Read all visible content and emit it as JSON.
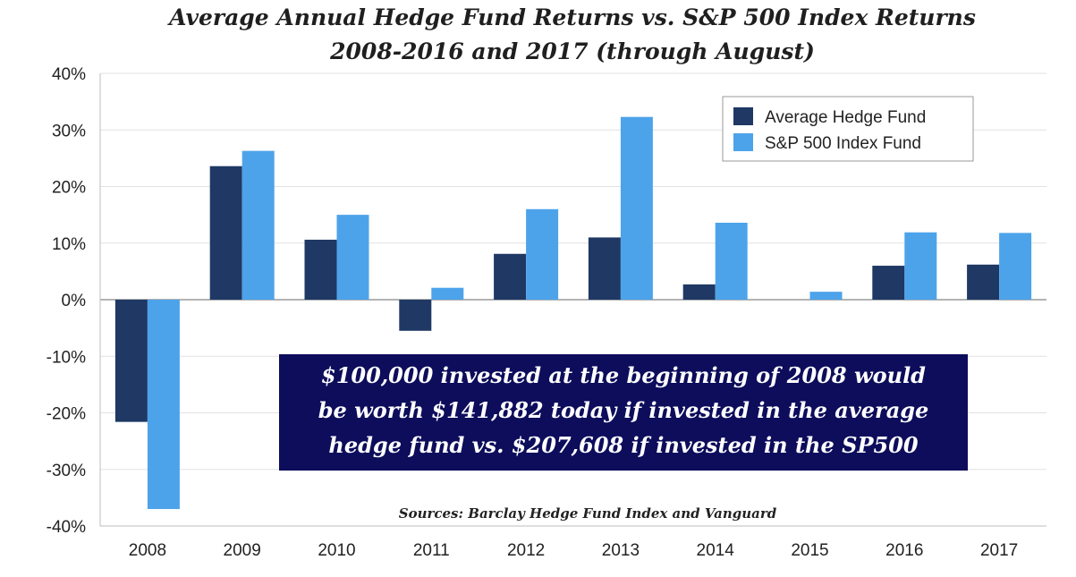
{
  "chart_data": {
    "type": "bar",
    "title_lines": [
      "Average Annual Hedge Fund Returns vs. S&P 500 Index Returns",
      "2008-2016 and 2017 (through August)"
    ],
    "categories": [
      "2008",
      "2009",
      "2010",
      "2011",
      "2012",
      "2013",
      "2014",
      "2015",
      "2016",
      "2017"
    ],
    "series": [
      {
        "name": "Average Hedge Fund",
        "color": "#1f3864",
        "values": [
          -21.6,
          23.6,
          10.6,
          -5.5,
          8.1,
          11.0,
          2.7,
          0.0,
          6.0,
          6.2
        ]
      },
      {
        "name": "S&P 500 Index Fund",
        "color": "#4da3ea",
        "values": [
          -37.0,
          26.3,
          15.0,
          2.1,
          16.0,
          32.3,
          13.6,
          1.4,
          11.9,
          11.8
        ]
      }
    ],
    "yticks": [
      "40%",
      "30%",
      "20%",
      "10%",
      "0%",
      "-10%",
      "-20%",
      "-30%",
      "-40%"
    ],
    "ylim": [
      -40,
      40
    ],
    "ygrid": true,
    "legend_position": "top-right",
    "annotation_lines": [
      "$100,000 invested at the beginning of 2008 would",
      "be worth $141,882 today if invested in the average",
      "hedge fund vs. $207,608 if invested in the SP500"
    ],
    "annotation_color": "#0d0d5c",
    "source": "Sources: Barclay Hedge Fund Index and Vanguard"
  }
}
